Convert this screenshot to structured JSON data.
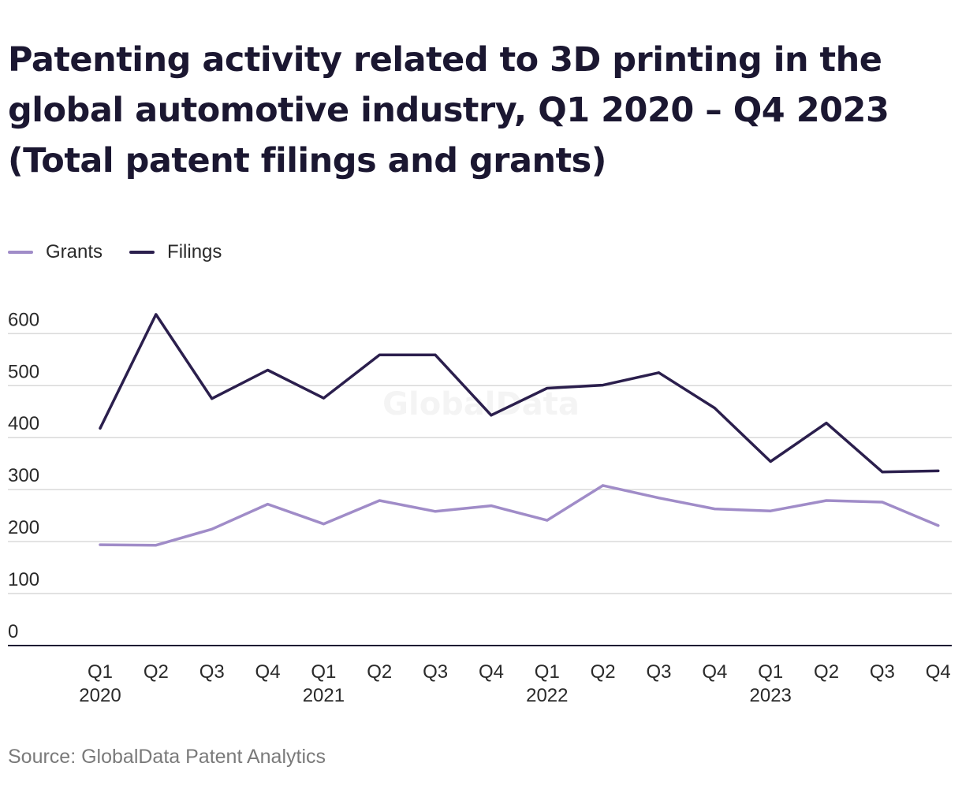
{
  "title": "Patenting activity related to 3D printing in the global automotive industry, Q1 2020 – Q4 2023 (Total patent filings and grants)",
  "source": "Source: GlobalData Patent Analytics",
  "watermark": "GlobalData",
  "colors": {
    "grants": "#a08cc8",
    "filings": "#2b1f4d",
    "grid": "#d9d9d9",
    "axis": "#1d1a33"
  },
  "chart_data": {
    "type": "line",
    "x": [
      "Q1",
      "Q2",
      "Q3",
      "Q4",
      "Q1",
      "Q2",
      "Q3",
      "Q4",
      "Q1",
      "Q2",
      "Q3",
      "Q4",
      "Q1",
      "Q2",
      "Q3",
      "Q4"
    ],
    "x_years": [
      "2020",
      "",
      "",
      "",
      "2021",
      "",
      "",
      "",
      "2022",
      "",
      "",
      "",
      "2023",
      "",
      "",
      ""
    ],
    "series": [
      {
        "name": "Grants",
        "color": "#a08cc8",
        "values": [
          194,
          193,
          224,
          272,
          234,
          279,
          258,
          269,
          241,
          308,
          284,
          263,
          259,
          279,
          276,
          231
        ]
      },
      {
        "name": "Filings",
        "color": "#2b1f4d",
        "values": [
          418,
          637,
          475,
          530,
          476,
          559,
          559,
          443,
          495,
          501,
          525,
          457,
          354,
          428,
          334,
          336
        ]
      }
    ],
    "yticks": [
      0,
      100,
      200,
      300,
      400,
      500,
      600
    ],
    "ylim": [
      0,
      650
    ],
    "grid": true,
    "legend_position": "top-left"
  }
}
